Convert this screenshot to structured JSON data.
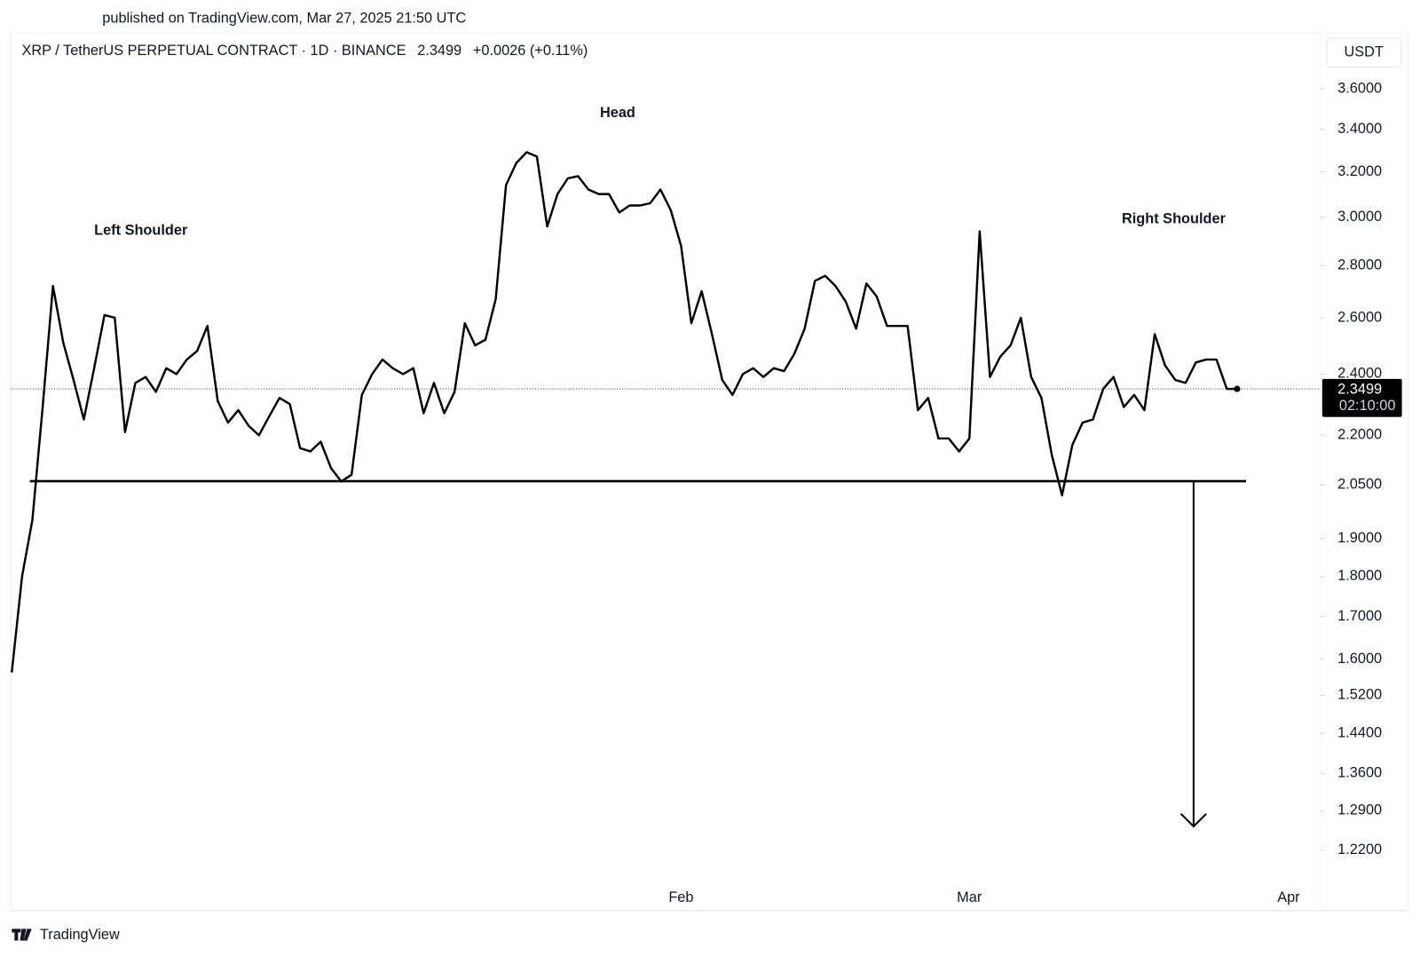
{
  "chart_data": {
    "type": "line",
    "published": "published on TradingView.com, Mar 27, 2025 21:50 UTC",
    "title": "XRP / TetherUS PERPETUAL CONTRACT · 1D · BINANCE",
    "change": "+0.0026 (+0.11%)",
    "currency": "USDT",
    "countdown": "02:10:00",
    "brand": "TradingView",
    "annotations": [
      "Left Shoulder",
      "Head",
      "Right Shoulder"
    ],
    "color": "#000000",
    "log_scale": true,
    "grid": false,
    "ylim": [
      1.119,
      3.9
    ],
    "yticks": [
      {
        "value": 3.6,
        "label": "3.6000"
      },
      {
        "value": 3.4,
        "label": "3.4000"
      },
      {
        "value": 3.2,
        "label": "3.2000"
      },
      {
        "value": 3.0,
        "label": "3.0000"
      },
      {
        "value": 2.8,
        "label": "2.8000"
      },
      {
        "value": 2.6,
        "label": "2.6000"
      },
      {
        "value": 2.4,
        "label": "2.4000"
      },
      {
        "value": 2.2,
        "label": "2.2000"
      },
      {
        "value": 2.05,
        "label": "2.0500"
      },
      {
        "value": 1.9,
        "label": "1.9000"
      },
      {
        "value": 1.8,
        "label": "1.8000"
      },
      {
        "value": 1.7,
        "label": "1.7000"
      },
      {
        "value": 1.6,
        "label": "1.6000"
      },
      {
        "value": 1.52,
        "label": "1.5200"
      },
      {
        "value": 1.44,
        "label": "1.4400"
      },
      {
        "value": 1.36,
        "label": "1.3600"
      },
      {
        "value": 1.29,
        "label": "1.2900"
      },
      {
        "value": 1.22,
        "label": "1.2200"
      }
    ],
    "categories": [
      null,
      null,
      null,
      null,
      null,
      null,
      null,
      null,
      null,
      null,
      null,
      null,
      null,
      null,
      null,
      null,
      null,
      null,
      null,
      null,
      null,
      null,
      null,
      null,
      null,
      null,
      null,
      null,
      null,
      null,
      null,
      null,
      null,
      null,
      null,
      null,
      null,
      null,
      null,
      null,
      null,
      null,
      null,
      null,
      null,
      null,
      null,
      null,
      null,
      null,
      null,
      null,
      null,
      null,
      null,
      null,
      null,
      null,
      null,
      null,
      null,
      null,
      null,
      null,
      null,
      "Feb",
      null,
      null,
      null,
      null,
      null,
      null,
      null,
      null,
      null,
      null,
      null,
      null,
      null,
      null,
      null,
      null,
      null,
      null,
      null,
      null,
      null,
      null,
      null,
      null,
      null,
      null,
      null,
      "Mar",
      null,
      null,
      null,
      null,
      null,
      null,
      null,
      null,
      null,
      null,
      null,
      null,
      null,
      null,
      null,
      null,
      null,
      null,
      null,
      null,
      null,
      null,
      null,
      null,
      null,
      null,
      null,
      null,
      null,
      null,
      "Apr"
    ],
    "values": [
      1.57,
      1.8,
      1.95,
      2.29,
      2.72,
      2.51,
      2.38,
      2.25,
      2.42,
      2.61,
      2.6,
      2.21,
      2.37,
      2.39,
      2.34,
      2.42,
      2.4,
      2.45,
      2.48,
      2.57,
      2.31,
      2.24,
      2.28,
      2.23,
      2.2,
      2.26,
      2.32,
      2.3,
      2.16,
      2.15,
      2.18,
      2.1,
      2.06,
      2.08,
      2.33,
      2.4,
      2.45,
      2.42,
      2.4,
      2.42,
      2.27,
      2.37,
      2.27,
      2.34,
      2.58,
      2.5,
      2.52,
      2.67,
      3.14,
      3.24,
      3.29,
      3.27,
      2.96,
      3.1,
      3.17,
      3.18,
      3.12,
      3.1,
      3.1,
      3.02,
      3.05,
      3.05,
      3.06,
      3.12,
      3.03,
      2.88,
      2.58,
      2.7,
      2.54,
      2.38,
      2.33,
      2.4,
      2.42,
      2.39,
      2.42,
      2.41,
      2.47,
      2.56,
      2.74,
      2.76,
      2.72,
      2.66,
      2.56,
      2.73,
      2.68,
      2.57,
      2.57,
      2.57,
      2.28,
      2.32,
      2.19,
      2.19,
      2.15,
      2.19,
      2.94,
      2.39,
      2.46,
      2.5,
      2.6,
      2.39,
      2.32,
      2.14,
      2.02,
      2.17,
      2.24,
      2.25,
      2.35,
      2.39,
      2.29,
      2.33,
      2.28,
      2.54,
      2.43,
      2.38,
      2.37,
      2.44,
      2.45,
      2.45,
      2.35,
      2.3499,
      null,
      null,
      null,
      null,
      null
    ]
  }
}
